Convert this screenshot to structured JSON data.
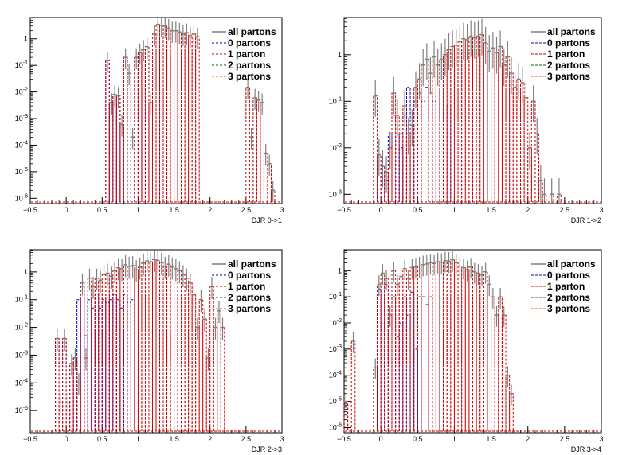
{
  "legend_entries": [
    {
      "label": "all partons",
      "color": "#7f7f7f",
      "style": "solid"
    },
    {
      "label": "0 partons",
      "color": "#0000cc",
      "style": "dashed"
    },
    {
      "label": "1 parton",
      "color": "#cc0000",
      "style": "dashed"
    },
    {
      "label": "2 partons",
      "color": "#006600",
      "style": "dashed"
    },
    {
      "label": "3 partons",
      "color": "#cc6600",
      "style": "dashed"
    }
  ],
  "chart_data": [
    {
      "type": "histogram",
      "xlabel": "DJR 0->1",
      "xlim": [
        -0.5,
        3.0
      ],
      "ylim_log": [
        -6.2,
        0.8
      ],
      "log_y": true,
      "x_ticks": [
        -0.5,
        0,
        0.5,
        1,
        1.5,
        2,
        2.5,
        3
      ],
      "x_tick_labels": [
        "−0.5",
        "0",
        "0.5",
        "1",
        "1.5",
        "2",
        "2.5",
        "3"
      ],
      "y_tick_exponents": [
        -6,
        -5,
        -4,
        -3,
        -2,
        -1,
        0
      ],
      "y_tick_labels": [
        "10^-6",
        "10^-5",
        "10^-4",
        "10^-3",
        "10^-2",
        "10^-1",
        "1"
      ],
      "bin_width": 0.05,
      "bins_all": [
        [
          0.55,
          0.15
        ],
        [
          0.6,
          0.004
        ],
        [
          0.65,
          0.008
        ],
        [
          0.7,
          0.007
        ],
        [
          0.75,
          0.0006
        ],
        [
          0.8,
          0.2
        ],
        [
          0.85,
          0.05
        ],
        [
          0.9,
          0.0002
        ],
        [
          0.95,
          0.2
        ],
        [
          1.0,
          0.3
        ],
        [
          1.05,
          0.4
        ],
        [
          1.1,
          0.5
        ],
        [
          1.15,
          0.004
        ],
        [
          1.2,
          1.5
        ],
        [
          1.25,
          3.5
        ],
        [
          1.3,
          3.2
        ],
        [
          1.35,
          3.0
        ],
        [
          1.4,
          2.5
        ],
        [
          1.45,
          2.0
        ],
        [
          1.5,
          2.0
        ],
        [
          1.55,
          1.8
        ],
        [
          1.6,
          1.5
        ],
        [
          1.65,
          1.7
        ],
        [
          1.7,
          1.3
        ],
        [
          1.75,
          1.5
        ],
        [
          1.8,
          1.2
        ],
        [
          2.5,
          0.015
        ],
        [
          2.55,
          0.0002
        ],
        [
          2.6,
          0.006
        ],
        [
          2.65,
          0.005
        ],
        [
          2.7,
          0.004
        ],
        [
          2.75,
          5e-05
        ],
        [
          2.8,
          2e-05
        ],
        [
          2.85,
          2e-06
        ]
      ],
      "bins_0p": [
        [
          0.55,
          0.15
        ],
        [
          0.6,
          0.004
        ],
        [
          0.65,
          0.008
        ],
        [
          0.7,
          0.007
        ],
        [
          0.75,
          0.0006
        ],
        [
          0.8,
          0.2
        ],
        [
          0.85,
          0.05
        ],
        [
          0.9,
          0.0002
        ],
        [
          0.95,
          0.2
        ],
        [
          1.0,
          0.3
        ],
        [
          1.05,
          0.4
        ],
        [
          1.1,
          0.5
        ],
        [
          1.15,
          0.004
        ]
      ]
    },
    {
      "type": "histogram",
      "xlabel": "DJR 1->2",
      "xlim": [
        -0.5,
        3.0
      ],
      "ylim_log": [
        -3.2,
        0.8
      ],
      "log_y": true,
      "x_ticks": [
        -0.5,
        0,
        0.5,
        1,
        1.5,
        2,
        2.5,
        3
      ],
      "x_tick_labels": [
        "−0.5",
        "0",
        "0.5",
        "1",
        "1.5",
        "2",
        "2.5",
        "3"
      ],
      "y_tick_exponents": [
        -3,
        -2,
        -1,
        0
      ],
      "y_tick_labels": [
        "10^-3",
        "10^-2",
        "10^-1",
        "1"
      ],
      "bin_width": 0.05,
      "bins_all": [
        [
          -0.1,
          0.13
        ],
        [
          -0.05,
          0.007
        ],
        [
          0.0,
          0.004
        ],
        [
          0.05,
          0.003
        ],
        [
          0.1,
          0.01
        ],
        [
          0.15,
          0.15
        ],
        [
          0.2,
          0.05
        ],
        [
          0.25,
          0.02
        ],
        [
          0.3,
          0.08
        ],
        [
          0.35,
          0.02
        ],
        [
          0.4,
          0.03
        ],
        [
          0.45,
          0.2
        ],
        [
          0.5,
          0.3
        ],
        [
          0.55,
          0.6
        ],
        [
          0.6,
          0.8
        ],
        [
          0.65,
          0.4
        ],
        [
          0.7,
          0.9
        ],
        [
          0.75,
          0.6
        ],
        [
          0.8,
          0.8
        ],
        [
          0.85,
          1.0
        ],
        [
          0.9,
          1.3
        ],
        [
          0.95,
          1.5
        ],
        [
          1.0,
          1.6
        ],
        [
          1.05,
          1.9
        ],
        [
          1.1,
          2.2
        ],
        [
          1.15,
          2.1
        ],
        [
          1.2,
          2.5
        ],
        [
          1.25,
          2.3
        ],
        [
          1.3,
          2.5
        ],
        [
          1.35,
          2.7
        ],
        [
          1.4,
          1.8
        ],
        [
          1.45,
          1.2
        ],
        [
          1.5,
          1.4
        ],
        [
          1.55,
          1.1
        ],
        [
          1.6,
          1.5
        ],
        [
          1.65,
          0.6
        ],
        [
          1.7,
          0.9
        ],
        [
          1.75,
          0.4
        ],
        [
          1.8,
          0.2
        ],
        [
          1.85,
          0.3
        ],
        [
          1.9,
          0.25
        ],
        [
          1.95,
          0.12
        ],
        [
          2.0,
          0.01
        ],
        [
          2.05,
          0.1
        ],
        [
          2.1,
          0.02
        ],
        [
          2.15,
          0.002
        ],
        [
          2.2,
          0.001
        ],
        [
          2.3,
          0.001
        ],
        [
          2.4,
          0.001
        ]
      ],
      "bins_0p": [
        [
          -0.1,
          0.13
        ],
        [
          -0.05,
          0.007
        ],
        [
          0.0,
          0.004
        ],
        [
          0.05,
          0.002
        ],
        [
          0.1,
          0.02
        ],
        [
          0.15,
          0.05
        ],
        [
          0.2,
          0.02
        ],
        [
          0.25,
          0.01
        ],
        [
          0.3,
          0.05
        ],
        [
          0.35,
          0.2
        ],
        [
          0.4,
          0.03
        ],
        [
          0.45,
          0.1
        ],
        [
          0.5,
          0.15
        ],
        [
          0.55,
          0.1
        ],
        [
          0.6,
          0.2
        ],
        [
          0.65,
          0.15
        ],
        [
          0.7,
          0.1
        ],
        [
          0.9,
          0.08
        ]
      ]
    },
    {
      "type": "histogram",
      "xlabel": "DJR 2->3",
      "xlim": [
        -0.5,
        3.0
      ],
      "ylim_log": [
        -5.8,
        0.8
      ],
      "log_y": true,
      "x_ticks": [
        -0.5,
        0,
        0.5,
        1,
        1.5,
        2,
        2.5,
        3
      ],
      "x_tick_labels": [
        "−0.5",
        "0",
        "0.5",
        "1",
        "1.5",
        "2",
        "2.5",
        "3"
      ],
      "y_tick_exponents": [
        -5,
        -4,
        -3,
        -2,
        -1,
        0
      ],
      "y_tick_labels": [
        "10^-5",
        "10^-4",
        "10^-3",
        "10^-2",
        "10^-1",
        "1"
      ],
      "bin_width": 0.05,
      "bins_all": [
        [
          -0.15,
          0.004
        ],
        [
          -0.1,
          2e-05
        ],
        [
          -0.05,
          0.004
        ],
        [
          0.0,
          2e-05
        ],
        [
          0.05,
          0.0005
        ],
        [
          0.1,
          0.0008
        ],
        [
          0.15,
          0.0001
        ],
        [
          0.2,
          0.4
        ],
        [
          0.25,
          0.0008
        ],
        [
          0.3,
          0.6
        ],
        [
          0.35,
          0.3
        ],
        [
          0.4,
          0.6
        ],
        [
          0.45,
          0.5
        ],
        [
          0.5,
          0.8
        ],
        [
          0.55,
          0.9
        ],
        [
          0.6,
          0.7
        ],
        [
          0.65,
          1.1
        ],
        [
          0.7,
          1.4
        ],
        [
          0.75,
          1.3
        ],
        [
          0.8,
          1.8
        ],
        [
          0.85,
          1.6
        ],
        [
          0.9,
          1.7
        ],
        [
          0.95,
          1.2
        ],
        [
          1.0,
          1.5
        ],
        [
          1.05,
          2.1
        ],
        [
          1.1,
          2.5
        ],
        [
          1.15,
          2.3
        ],
        [
          1.2,
          2.8
        ],
        [
          1.25,
          2.6
        ],
        [
          1.3,
          2.2
        ],
        [
          1.35,
          1.6
        ],
        [
          1.4,
          1.9
        ],
        [
          1.45,
          1.5
        ],
        [
          1.5,
          1.3
        ],
        [
          1.55,
          1.1
        ],
        [
          1.6,
          0.8
        ],
        [
          1.65,
          0.6
        ],
        [
          1.7,
          0.4
        ],
        [
          1.75,
          0.15
        ],
        [
          1.8,
          0.01
        ],
        [
          1.85,
          0.1
        ],
        [
          1.9,
          0.02
        ],
        [
          1.95,
          0.0008
        ],
        [
          2.0,
          0.3
        ],
        [
          2.05,
          0.01
        ],
        [
          2.1,
          0.04
        ],
        [
          2.15,
          0.01
        ]
      ],
      "bins_0p": [
        [
          -0.15,
          0.004
        ],
        [
          -0.05,
          0.004
        ],
        [
          0.05,
          0.0005
        ],
        [
          0.1,
          0.0008
        ],
        [
          0.15,
          0.1
        ],
        [
          0.2,
          0.3
        ],
        [
          0.25,
          0.005
        ],
        [
          0.3,
          0.1
        ],
        [
          0.35,
          0.05
        ],
        [
          0.4,
          0.15
        ],
        [
          0.45,
          0.05
        ],
        [
          0.5,
          0.1
        ],
        [
          0.55,
          0.08
        ],
        [
          0.6,
          0.1
        ],
        [
          0.65,
          0.15
        ],
        [
          0.7,
          0.1
        ],
        [
          0.75,
          0.05
        ],
        [
          0.8,
          0.15
        ],
        [
          0.85,
          0.08
        ],
        [
          0.9,
          0.1
        ]
      ]
    },
    {
      "type": "histogram",
      "xlabel": "DJR 3->4",
      "xlim": [
        -0.5,
        3.0
      ],
      "ylim_log": [
        -6.2,
        0.8
      ],
      "log_y": true,
      "x_ticks": [
        -0.5,
        0,
        0.5,
        1,
        1.5,
        2,
        2.5,
        3
      ],
      "x_tick_labels": [
        "−0.5",
        "0",
        "0.5",
        "1",
        "1.5",
        "2",
        "2.5",
        "3"
      ],
      "y_tick_exponents": [
        -6,
        -5,
        -4,
        -3,
        -2,
        -1,
        0
      ],
      "y_tick_labels": [
        "10^-6",
        "10^-5",
        "10^-4",
        "10^-3",
        "10^-2",
        "10^-1",
        "1"
      ],
      "bin_width": 0.05,
      "bins_all": [
        [
          -0.5,
          1e-05
        ],
        [
          -0.4,
          0.002
        ],
        [
          -0.1,
          0.0002
        ],
        [
          -0.05,
          0.3
        ],
        [
          0.0,
          0.8
        ],
        [
          0.05,
          0.5
        ],
        [
          0.1,
          0.02
        ],
        [
          0.15,
          1.0
        ],
        [
          0.2,
          0.3
        ],
        [
          0.25,
          0.6
        ],
        [
          0.3,
          1.2
        ],
        [
          0.35,
          0.5
        ],
        [
          0.4,
          1.3
        ],
        [
          0.45,
          1.4
        ],
        [
          0.5,
          1.5
        ],
        [
          0.55,
          1.7
        ],
        [
          0.6,
          1.8
        ],
        [
          0.65,
          2.0
        ],
        [
          0.7,
          1.9
        ],
        [
          0.75,
          2.2
        ],
        [
          0.8,
          2.1
        ],
        [
          0.85,
          2.4
        ],
        [
          0.9,
          2.3
        ],
        [
          0.95,
          2.6
        ],
        [
          1.0,
          2.0
        ],
        [
          1.05,
          1.5
        ],
        [
          1.1,
          1.3
        ],
        [
          1.15,
          1.1
        ],
        [
          1.2,
          1.4
        ],
        [
          1.25,
          0.9
        ],
        [
          1.3,
          0.8
        ],
        [
          1.35,
          0.7
        ],
        [
          1.4,
          0.9
        ],
        [
          1.45,
          0.3
        ],
        [
          1.5,
          0.1
        ],
        [
          1.55,
          0.02
        ],
        [
          1.6,
          0.1
        ],
        [
          1.65,
          0.02
        ],
        [
          1.7,
          0.0001
        ],
        [
          1.75,
          2e-05
        ]
      ],
      "bins_0p": [
        [
          -0.5,
          1e-05
        ],
        [
          -0.1,
          0.0002
        ],
        [
          -0.05,
          0.2
        ],
        [
          0.0,
          0.01
        ],
        [
          0.05,
          0.3
        ],
        [
          0.1,
          0.01
        ],
        [
          0.15,
          0.1
        ],
        [
          0.2,
          0.003
        ],
        [
          0.25,
          0.01
        ],
        [
          0.3,
          0.1
        ],
        [
          0.35,
          0.02
        ],
        [
          0.4,
          0.15
        ],
        [
          0.45,
          0.001
        ],
        [
          0.5,
          0.1
        ],
        [
          0.55,
          0.1
        ],
        [
          0.6,
          0.05
        ],
        [
          0.65,
          0.1
        ]
      ]
    }
  ]
}
